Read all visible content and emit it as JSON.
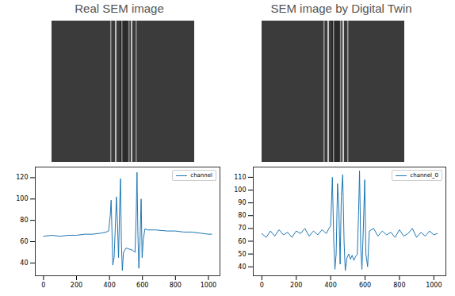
{
  "chart_data": [
    {
      "type": "line",
      "title": "Real SEM image",
      "x": [
        0,
        50,
        100,
        150,
        200,
        250,
        300,
        350,
        380,
        395,
        405,
        410,
        415,
        420,
        428,
        435,
        442,
        448,
        455,
        462,
        467,
        472,
        478,
        485,
        500,
        520,
        540,
        555,
        562,
        567,
        572,
        578,
        585,
        592,
        598,
        605,
        615,
        630,
        680,
        750,
        800,
        850,
        900,
        950,
        1000,
        1020
      ],
      "series": [
        {
          "name": "channel",
          "color": "#1f77b4",
          "values": [
            65,
            66,
            65,
            66,
            66,
            67,
            67,
            68,
            69,
            70,
            85,
            99,
            70,
            38,
            45,
            72,
            102,
            80,
            45,
            95,
            119,
            60,
            33,
            50,
            54,
            53,
            52,
            50,
            85,
            125,
            70,
            35,
            60,
            100,
            45,
            62,
            72,
            71,
            71,
            70,
            70,
            69,
            69,
            68,
            67,
            67
          ]
        }
      ],
      "xlim": [
        -50,
        1070
      ],
      "xticks": [
        0,
        200,
        400,
        600,
        800,
        1000
      ],
      "ylim": [
        28,
        130
      ],
      "yticks": [
        40,
        60,
        80,
        100,
        120
      ],
      "grid": false,
      "legend": "upper right"
    },
    {
      "type": "line",
      "title": "SEM image by Digital Twin",
      "x": [
        0,
        25,
        50,
        75,
        100,
        125,
        150,
        175,
        200,
        225,
        250,
        275,
        300,
        325,
        350,
        375,
        390,
        400,
        410,
        418,
        425,
        432,
        440,
        448,
        455,
        462,
        470,
        478,
        485,
        495,
        505,
        515,
        525,
        535,
        545,
        555,
        562,
        568,
        575,
        582,
        590,
        598,
        605,
        615,
        625,
        650,
        675,
        700,
        725,
        750,
        775,
        800,
        825,
        850,
        875,
        900,
        925,
        950,
        975,
        1000,
        1020
      ],
      "series": [
        {
          "name": "channel_0",
          "color": "#1f77b4",
          "values": [
            66,
            63,
            68,
            64,
            69,
            65,
            67,
            63,
            68,
            66,
            70,
            64,
            68,
            65,
            69,
            66,
            70,
            72,
            110,
            60,
            38,
            50,
            105,
            85,
            42,
            95,
            112,
            60,
            37,
            47,
            50,
            46,
            49,
            45,
            48,
            50,
            80,
            115,
            55,
            38,
            70,
            108,
            50,
            40,
            68,
            70,
            64,
            68,
            65,
            67,
            63,
            69,
            64,
            66,
            70,
            63,
            67,
            64,
            68,
            65,
            66
          ]
        }
      ],
      "xlim": [
        -50,
        1070
      ],
      "xticks": [
        0,
        200,
        400,
        600,
        800,
        1000
      ],
      "ylim": [
        33,
        118
      ],
      "yticks": [
        40,
        50,
        60,
        70,
        80,
        90,
        100,
        110
      ],
      "grid": false,
      "legend": "upper right"
    }
  ]
}
